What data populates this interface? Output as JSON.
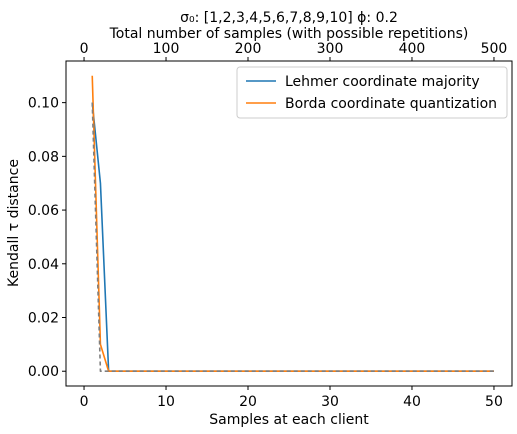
{
  "chart_data": {
    "type": "line",
    "title_line1": "σ₀: [1,2,3,4,5,6,7,8,9,10] ϕ: 0.2",
    "title_line2": "Total number of samples (with possible repetitions)",
    "xlabel": "Samples at each client",
    "ylabel": "Kendall τ distance",
    "xlim": [
      -2.2,
      52.2
    ],
    "ylim": [
      -0.0055,
      0.1155
    ],
    "xticks": [
      0,
      10,
      20,
      30,
      40,
      50
    ],
    "yticks": [
      0.0,
      0.02,
      0.04,
      0.06,
      0.08,
      0.1
    ],
    "ytick_labels": [
      "0.00",
      "0.02",
      "0.04",
      "0.06",
      "0.08",
      "0.10"
    ],
    "top_axis": {
      "ticks": [
        0,
        100,
        200,
        300,
        400,
        500
      ],
      "xlim": [
        -22,
        522
      ]
    },
    "legend_position": "top-right",
    "series": [
      {
        "name": "Lehmer coordinate majority",
        "color": "#1f77b4",
        "dashed": false,
        "x": [
          1,
          2,
          3,
          4,
          50
        ],
        "y": [
          0.1,
          0.07,
          0.0,
          0.0,
          0.0
        ]
      },
      {
        "name": "Borda coordinate quantization",
        "color": "#ff7f0e",
        "dashed": false,
        "x": [
          1,
          2,
          3,
          4,
          50
        ],
        "y": [
          0.11,
          0.01,
          0.0,
          0.0,
          0.0
        ]
      },
      {
        "name": "",
        "color": "#7f7f7f",
        "dashed": true,
        "x": [
          1,
          2,
          3,
          50
        ],
        "y": [
          0.1,
          0.0,
          0.0,
          0.0
        ]
      }
    ]
  }
}
